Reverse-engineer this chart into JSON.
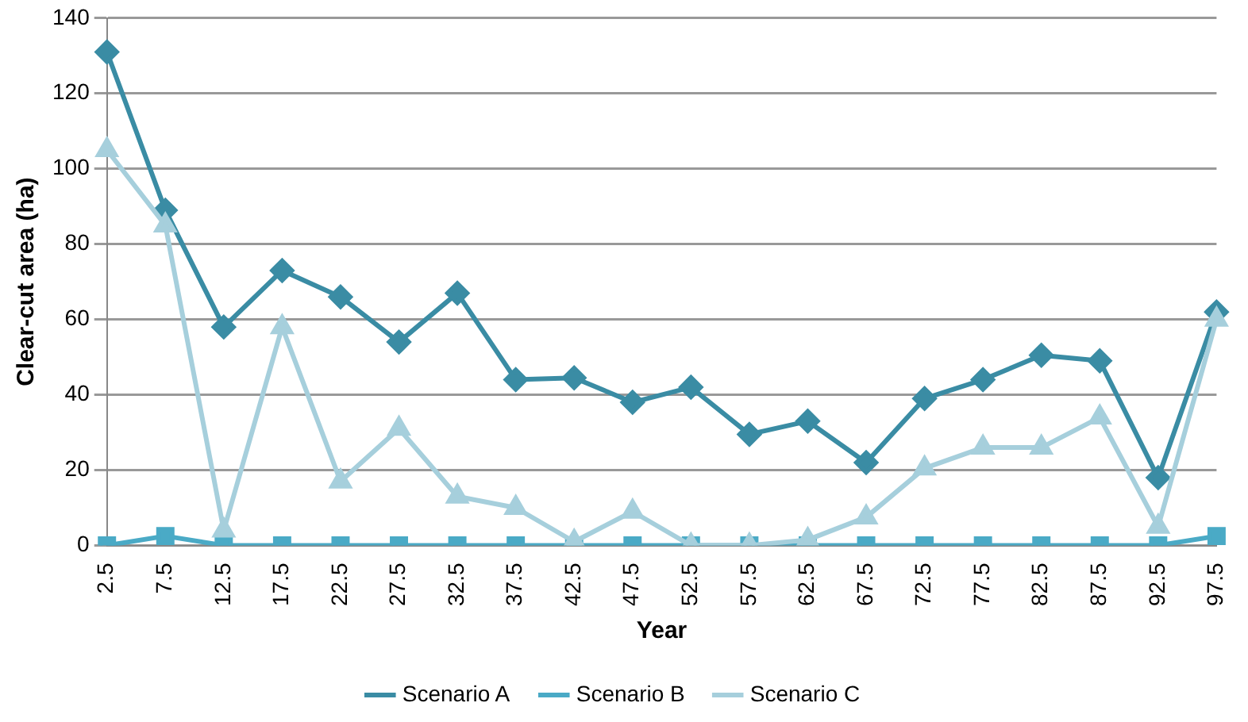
{
  "chart_data": {
    "type": "line",
    "xlabel": "Year",
    "ylabel": "Clear-cut area (ha)",
    "categories": [
      "2.5",
      "7.5",
      "12.5",
      "17.5",
      "22.5",
      "27.5",
      "32.5",
      "37.5",
      "42.5",
      "47.5",
      "52.5",
      "57.5",
      "62.5",
      "67.5",
      "72.5",
      "77.5",
      "82.5",
      "87.5",
      "92.5",
      "97.5"
    ],
    "series": [
      {
        "name": "Scenario A",
        "color": "#3a8ca4",
        "marker": "diamond",
        "values": [
          131,
          89,
          58,
          73,
          66,
          54,
          67,
          44,
          44.5,
          38,
          42,
          29.5,
          33,
          22,
          39,
          44,
          50.5,
          49,
          18,
          62
        ]
      },
      {
        "name": "Scenario B",
        "color": "#4aaac6",
        "marker": "square",
        "values": [
          0,
          2.5,
          0,
          0,
          0,
          0,
          0,
          0,
          0,
          0,
          0,
          0,
          0,
          0,
          0,
          0,
          0,
          0,
          0,
          2.5
        ]
      },
      {
        "name": "Scenario C",
        "color": "#a6cfdc",
        "marker": "triangle",
        "values": [
          105,
          85,
          4,
          58,
          17,
          31,
          13,
          10,
          1,
          9,
          0,
          0,
          1.5,
          7.5,
          20.5,
          26,
          26,
          34,
          5,
          60
        ]
      }
    ],
    "ylim": [
      0,
      140
    ],
    "yticks": [
      0,
      20,
      40,
      60,
      80,
      100,
      120,
      140
    ],
    "grid": "y",
    "legend": "bottom"
  }
}
